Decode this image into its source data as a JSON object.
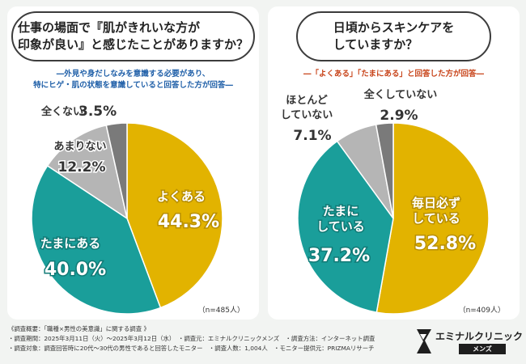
{
  "chart_data": [
    {
      "type": "pie",
      "title": "仕事の場面で『肌がきれいな方が印象が良い』と感じたことがありますか？",
      "title_lines": [
        "仕事の場面で『肌がきれいな方が",
        "印象が良い』と感じたことがありますか？"
      ],
      "subtitle_lines": [
        "―外見や身だしなみを意識する必要があり、",
        "特にヒゲ・肌の状態を意識していると回答した方が回答―"
      ],
      "n_label": "（n=485人）",
      "slices": [
        {
          "label": "よくある",
          "value": 44.3,
          "value_label": "44.3%",
          "color": "#e2b300"
        },
        {
          "label": "たまにある",
          "value": 40.0,
          "value_label": "40.0%",
          "color": "#1a9e9a"
        },
        {
          "label": "あまりない",
          "value": 12.2,
          "value_label": "12.2%",
          "color": "#b5b5b5"
        },
        {
          "label": "全くない",
          "value": 3.5,
          "value_label": "3.5%",
          "color": "#7a7a7a"
        }
      ]
    },
    {
      "type": "pie",
      "title": "日頃からスキンケアをしていますか？",
      "title_lines": [
        "日頃からスキンケアを",
        "していますか？"
      ],
      "subtitle_lines": [
        "―「よくある」「たまにある」と回答した方が回答―"
      ],
      "n_label": "（n=409人）",
      "slices": [
        {
          "label": "毎日必ずしている",
          "label_lines": [
            "毎日必ず",
            "している"
          ],
          "value": 52.8,
          "value_label": "52.8%",
          "color": "#e2b300"
        },
        {
          "label": "たまにしている",
          "label_lines": [
            "たまに",
            "している"
          ],
          "value": 37.2,
          "value_label": "37.2%",
          "color": "#1a9e9a"
        },
        {
          "label": "ほとんどしていない",
          "label_lines": [
            "ほとんど",
            "していない"
          ],
          "value": 7.1,
          "value_label": "7.1%",
          "color": "#b5b5b5"
        },
        {
          "label": "全くしていない",
          "value": 2.9,
          "value_label": "2.9%",
          "color": "#7a7a7a"
        }
      ]
    }
  ],
  "footer": {
    "lines": [
      "《調査概要：「職種×男性の美意識」に関する調査 》",
      "・調査期間：2025年3月11日（火）〜2025年3月12日（水）　・調査元：エミナルクリニックメンズ　・調査方法：インターネット調査",
      "・調査対象：調査回答時に20代〜30代の男性であると回答したモニター　・調査人数：1,004人　・モニター提供元：PRIZMAリサーチ"
    ]
  },
  "logo": {
    "name": "エミナルクリニック",
    "sub": "メンズ"
  }
}
